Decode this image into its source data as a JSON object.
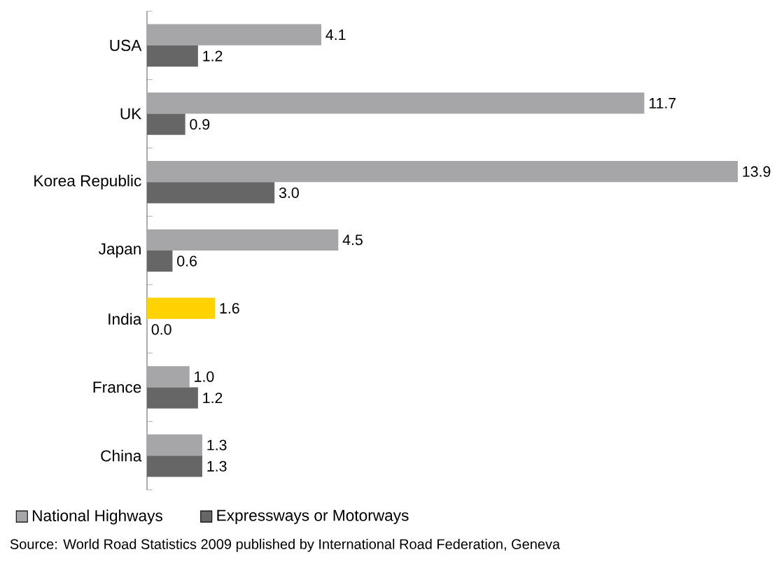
{
  "chart_data": {
    "type": "bar",
    "orientation": "horizontal",
    "categories": [
      "USA",
      "UK",
      "Korea Republic",
      "Japan",
      "India",
      "France",
      "China"
    ],
    "series": [
      {
        "name": "National Highways",
        "color": "#a6a6a8",
        "colors": [
          "#a6a6a8",
          "#a6a6a8",
          "#a6a6a8",
          "#a6a6a8",
          "#ffd200",
          "#a6a6a8",
          "#a6a6a8"
        ],
        "values": [
          4.1,
          11.7,
          13.9,
          4.5,
          1.6,
          1.0,
          1.3
        ],
        "value_labels": [
          "4.1",
          "11.7",
          "13.9",
          "4.5",
          "1.6",
          "1.0",
          "1.3"
        ]
      },
      {
        "name": "Expressways or Motorways",
        "color": "#666666",
        "values": [
          1.2,
          0.9,
          3.0,
          0.6,
          0.0,
          1.2,
          1.3
        ],
        "value_labels": [
          "1.2",
          "0.9",
          "3.0",
          "0.6",
          "0.0",
          "1.2",
          "1.3"
        ]
      }
    ],
    "legend": "bottom left",
    "annotations": [
      "Source: World Road Statistics 2009 published by International Road Federation, Geneva"
    ]
  }
}
